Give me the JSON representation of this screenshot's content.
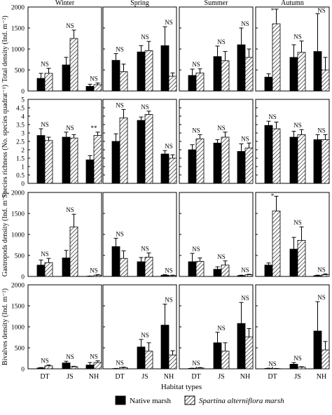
{
  "chart_data": {
    "type": "bar",
    "seasons": [
      "Winter",
      "Spring",
      "Summer",
      "Autumn"
    ],
    "categories": [
      "DT",
      "JS",
      "NH"
    ],
    "xlabel": "Habitat types",
    "legend": {
      "placement": "bottom",
      "items": [
        {
          "name": "Native marsh",
          "style": "solid",
          "color": "#000000"
        },
        {
          "name": "Spartina alterniflora marsh",
          "style": "hatched",
          "color": "#ffffff"
        }
      ]
    },
    "rows": [
      {
        "ylabel": "Total density (Ind. m⁻²)",
        "ylim": [
          0,
          2000
        ],
        "yticks": [
          0,
          500,
          1000,
          1500,
          2000
        ],
        "data": [
          {
            "native": [
              300,
              620,
              110
            ],
            "native_err": [
              120,
              180,
              50
            ],
            "spartina": [
              420,
              1250,
              150
            ],
            "spartina_err": [
              120,
              200,
              40
            ],
            "labels": [
              "NS",
              "NS",
              "NS"
            ]
          },
          {
            "native": [
              730,
              930,
              1080
            ],
            "native_err": [
              160,
              150,
              450
            ],
            "spartina": [
              460,
              960,
              350
            ],
            "spartina_err": [
              180,
              220,
              80
            ],
            "labels": [
              "NS",
              "NS",
              "NS"
            ]
          },
          {
            "native": [
              370,
              820,
              1100
            ],
            "native_err": [
              150,
              250,
              400
            ],
            "spartina": [
              430,
              720,
              800
            ],
            "spartina_err": [
              100,
              220,
              200
            ],
            "labels": [
              "NS",
              "NS",
              "NS"
            ]
          },
          {
            "native": [
              330,
              800,
              940
            ],
            "native_err": [
              80,
              300,
              900
            ],
            "spartina": [
              1600,
              920,
              500
            ],
            "spartina_err": [
              350,
              270,
              300
            ],
            "labels": [
              "*",
              "NS",
              "NS"
            ]
          }
        ]
      },
      {
        "ylabel": "Species richness (No. species  quadrat⁻¹)",
        "ylim": [
          0,
          5
        ],
        "yticks": [
          0,
          0.5,
          1,
          1.5,
          2,
          2.5,
          3,
          3.5,
          4,
          4.5,
          5
        ],
        "data": [
          {
            "native": [
              2.85,
              2.75,
              1.4
            ],
            "native_err": [
              0.4,
              0.3,
              0.25
            ],
            "spartina": [
              2.55,
              2.7,
              2.85
            ],
            "spartina_err": [
              0.2,
              0.2,
              0.2
            ],
            "labels": [
              "NS",
              "NS",
              "**"
            ]
          },
          {
            "native": [
              2.5,
              3.75,
              1.75
            ],
            "native_err": [
              0.45,
              0.2,
              0.2
            ],
            "spartina": [
              3.9,
              4.1,
              1.5
            ],
            "spartina_err": [
              0.5,
              0.2,
              0.2
            ],
            "labels": [
              "NS",
              "NS",
              "NS"
            ]
          },
          {
            "native": [
              2.0,
              2.4,
              1.9
            ],
            "native_err": [
              0.3,
              0.2,
              0.45
            ],
            "spartina": [
              2.65,
              2.75,
              2.1
            ],
            "spartina_err": [
              0.25,
              0.3,
              0.3
            ],
            "labels": [
              "NS",
              "NS",
              "NS"
            ]
          },
          {
            "native": [
              3.45,
              2.75,
              2.6
            ],
            "native_err": [
              0.25,
              0.35,
              0.3
            ],
            "spartina": [
              3.25,
              2.9,
              2.6
            ],
            "spartina_err": [
              0.4,
              0.3,
              0.3
            ],
            "labels": [
              "NS",
              "NS",
              "NS"
            ]
          }
        ]
      },
      {
        "ylabel": "Gastropods density (Ind. m⁻²)",
        "ylim": [
          0,
          2000
        ],
        "yticks": [
          0,
          500,
          1000,
          1500,
          2000
        ],
        "data": [
          {
            "native": [
              270,
              440,
              5
            ],
            "native_err": [
              120,
              180,
              5
            ],
            "spartina": [
              330,
              1180,
              30
            ],
            "spartina_err": [
              100,
              300,
              15
            ],
            "labels": [
              "NS",
              "NS",
              "NS"
            ]
          },
          {
            "native": [
              710,
              350,
              30
            ],
            "native_err": [
              200,
              100,
              15
            ],
            "spartina": [
              430,
              460,
              20
            ],
            "spartina_err": [
              180,
              100,
              10
            ],
            "labels": [
              "NS",
              "NS",
              "NS"
            ]
          },
          {
            "native": [
              350,
              170,
              20
            ],
            "native_err": [
              200,
              60,
              10
            ],
            "spartina": [
              360,
              270,
              40
            ],
            "spartina_err": [
              80,
              100,
              10
            ],
            "labels": [
              "NS",
              "NS",
              "NS"
            ]
          },
          {
            "native": [
              270,
              650,
              20
            ],
            "native_err": [
              50,
              280,
              10
            ],
            "spartina": [
              1560,
              860,
              40
            ],
            "spartina_err": [
              350,
              320,
              20
            ],
            "labels": [
              "*",
              "NS",
              "NS"
            ]
          }
        ]
      },
      {
        "ylabel": "Bivalves density (Ind. m⁻²)",
        "ylim": [
          0,
          2000
        ],
        "yticks": [
          0,
          500,
          1000,
          1500,
          2000
        ],
        "data": [
          {
            "native": [
              20,
              140,
              90
            ],
            "native_err": [
              10,
              40,
              60
            ],
            "spartina": [
              70,
              50,
              150
            ],
            "spartina_err": [
              20,
              10,
              40
            ],
            "labels": [
              "NS",
              "NS",
              "NS"
            ]
          },
          {
            "native": [
              5,
              520,
              1040
            ],
            "native_err": [
              5,
              180,
              500
            ],
            "spartina": [
              30,
              420,
              330
            ],
            "spartina_err": [
              10,
              200,
              100
            ],
            "labels": [
              "NS",
              "NS",
              "NS"
            ]
          },
          {
            "native": [
              10,
              620,
              1080
            ],
            "native_err": [
              5,
              250,
              500
            ],
            "spartina": [
              20,
              420,
              760
            ],
            "spartina_err": [
              10,
              200,
              200
            ],
            "labels": [
              "NS",
              "NS",
              "NS"
            ]
          },
          {
            "native": [
              10,
              110,
              900
            ],
            "native_err": [
              5,
              40,
              700
            ],
            "spartina": [
              5,
              40,
              450
            ],
            "spartina_err": [
              5,
              10,
              200
            ],
            "labels": [
              "NS",
              "NS",
              "NS"
            ]
          }
        ]
      }
    ]
  }
}
